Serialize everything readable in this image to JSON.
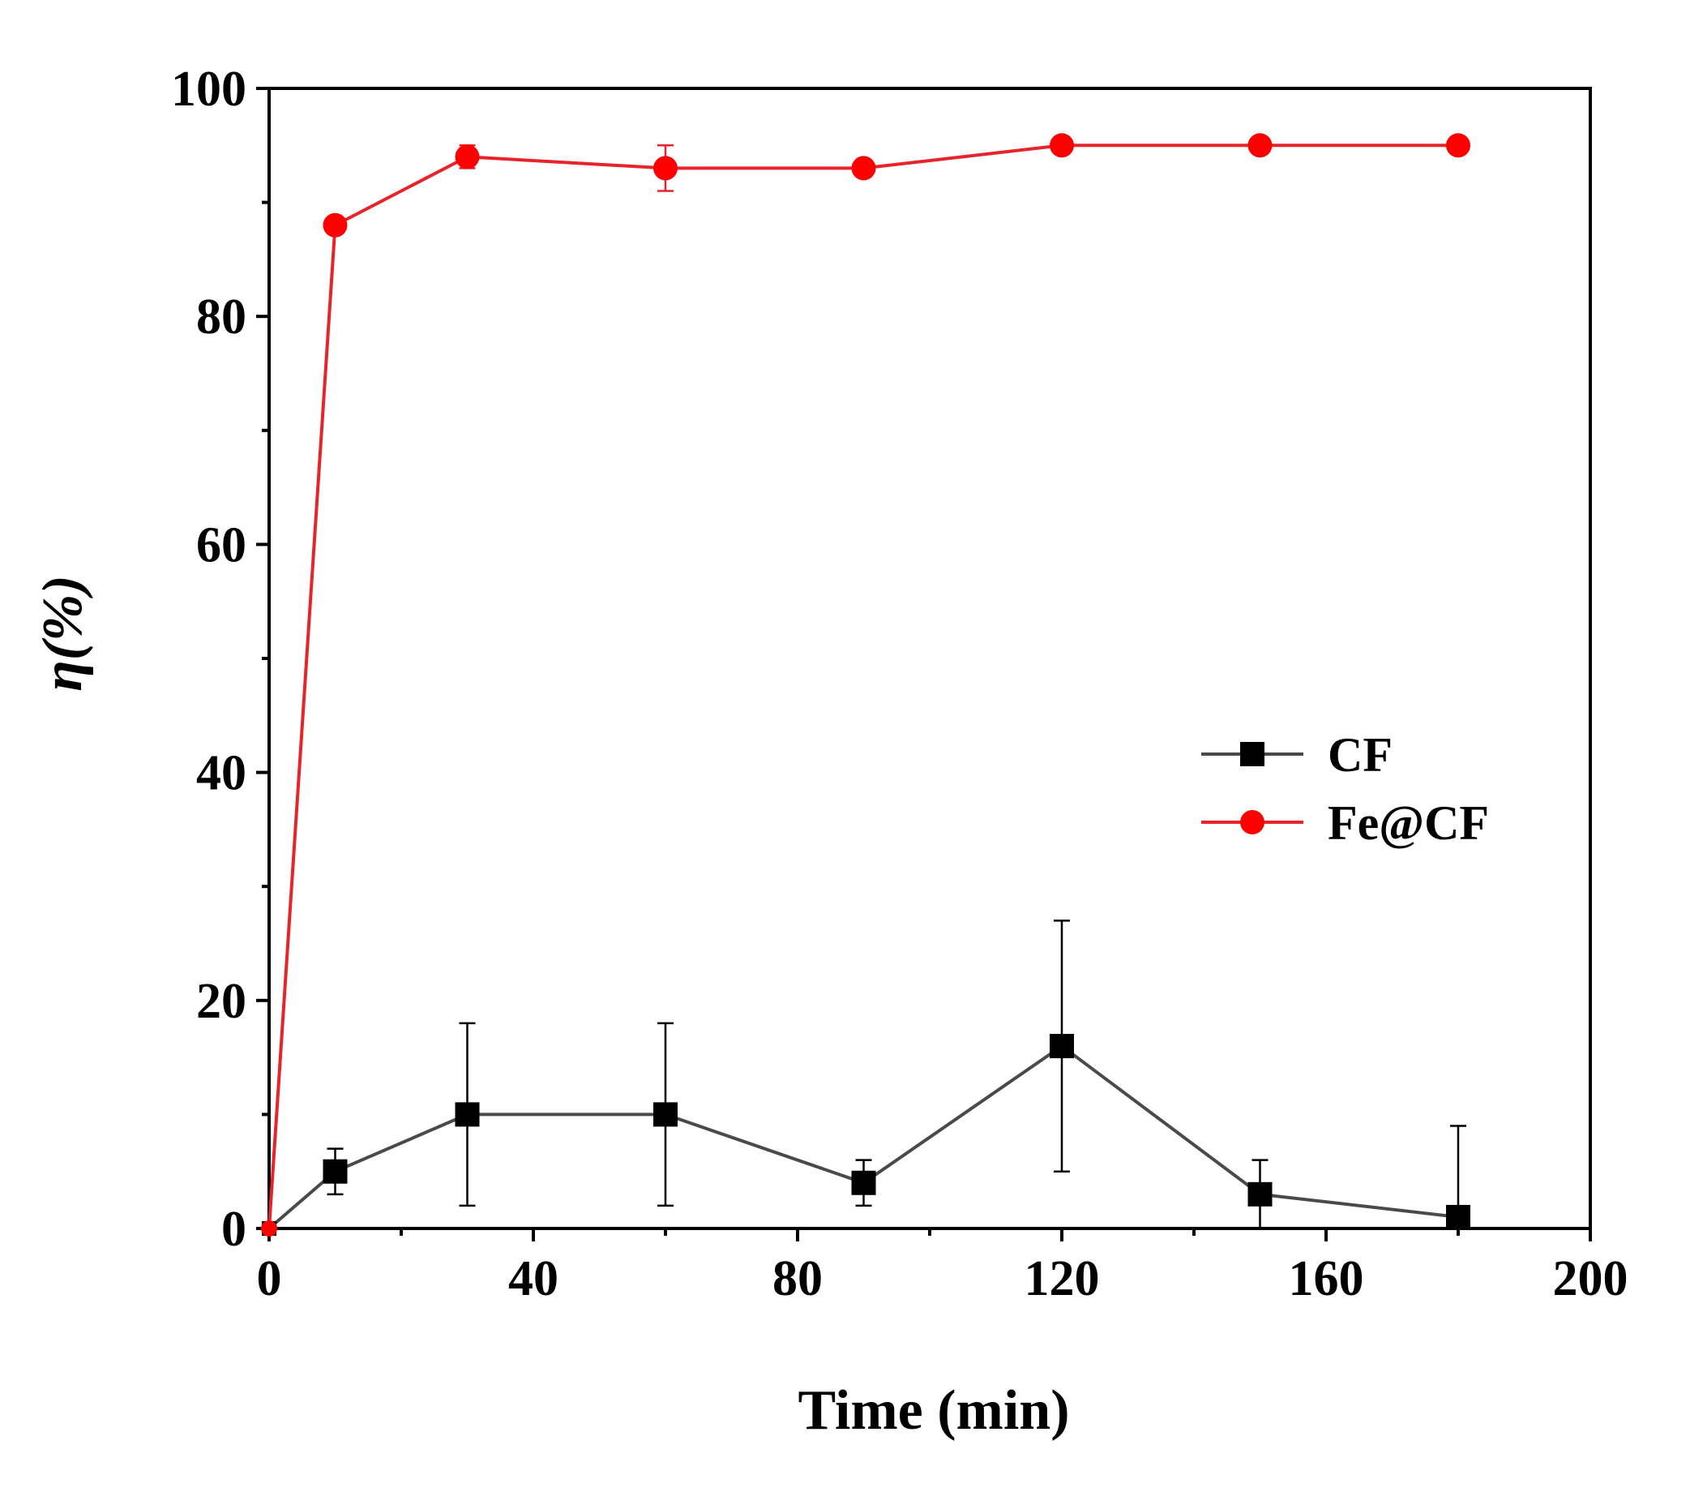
{
  "chart_data": {
    "type": "line",
    "xlabel": "Time (min)",
    "ylabel": "η(%)",
    "xlim": [
      0,
      200
    ],
    "ylim": [
      0,
      100
    ],
    "xticks": [
      0,
      40,
      80,
      120,
      160,
      200
    ],
    "xminor": [
      20,
      60,
      100,
      140,
      180
    ],
    "yticks": [
      0,
      20,
      40,
      60,
      80,
      100
    ],
    "yminor": [
      10,
      30,
      50,
      70,
      90
    ],
    "legend_position": "right-middle",
    "series": [
      {
        "name": "CF",
        "color": "#4a4a4a",
        "marker": "square",
        "marker_color": "#000000",
        "x": [
          0,
          10,
          30,
          60,
          90,
          120,
          150,
          180
        ],
        "y": [
          0,
          5,
          10,
          10,
          4,
          16,
          3,
          1
        ],
        "err": [
          0,
          2,
          8,
          8,
          2,
          11,
          3,
          8
        ]
      },
      {
        "name": "Fe@CF",
        "color": "#e8242b",
        "marker": "circle",
        "marker_color": "#ff0000",
        "x": [
          0,
          10,
          30,
          60,
          90,
          120,
          150,
          180
        ],
        "y": [
          0,
          88,
          94,
          93,
          93,
          95,
          95,
          95
        ],
        "err": [
          0,
          0.5,
          1,
          2,
          0.5,
          0.5,
          0.5,
          0.3
        ]
      }
    ]
  }
}
